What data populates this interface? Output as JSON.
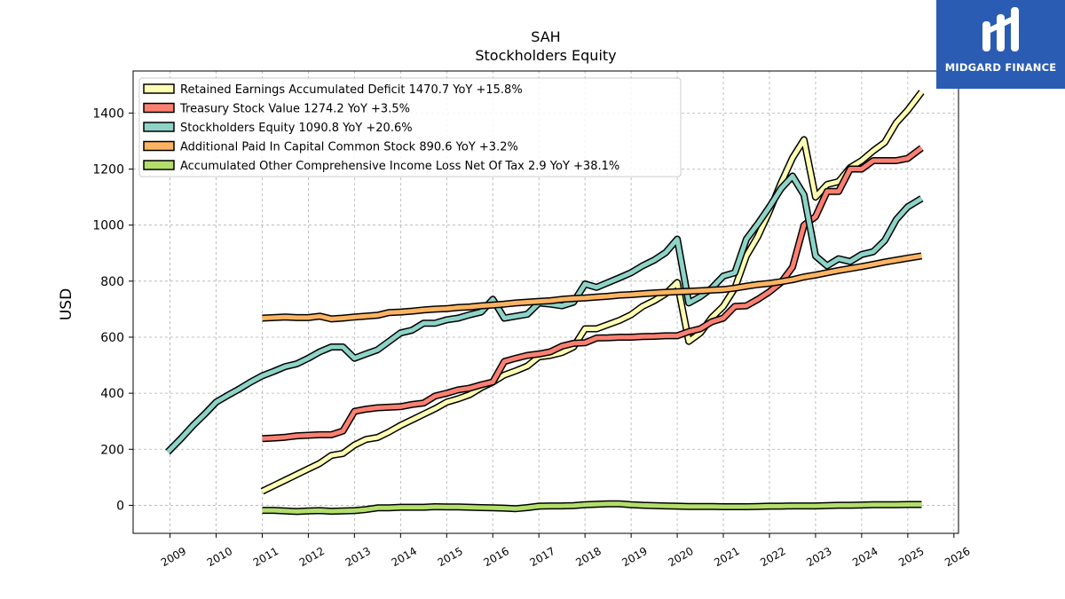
{
  "chart_data": {
    "type": "line",
    "title": "SAH",
    "subtitle": "Stockholders  Equity",
    "ylabel": "USD",
    "xlabel": "",
    "xlim": [
      2008.2,
      2026.1
    ],
    "ylim": [
      -100,
      1550
    ],
    "x_ticks": [
      2009,
      2010,
      2011,
      2012,
      2013,
      2014,
      2015,
      2016,
      2017,
      2018,
      2019,
      2020,
      2021,
      2022,
      2023,
      2024,
      2025,
      2026
    ],
    "y_ticks": [
      0,
      200,
      400,
      600,
      800,
      1000,
      1200,
      1400
    ],
    "grid": true,
    "legend_position": "top-left",
    "series": [
      {
        "name": "Retained Earnings Accumulated Deficit  1470.7 YoY +15.8%",
        "color": "#ffffb3",
        "points": [
          [
            2011.0,
            50
          ],
          [
            2011.25,
            70
          ],
          [
            2011.5,
            90
          ],
          [
            2011.75,
            110
          ],
          [
            2012.0,
            130
          ],
          [
            2012.25,
            150
          ],
          [
            2012.5,
            178
          ],
          [
            2012.75,
            185
          ],
          [
            2013.0,
            215
          ],
          [
            2013.25,
            235
          ],
          [
            2013.5,
            242
          ],
          [
            2013.75,
            262
          ],
          [
            2014.0,
            285
          ],
          [
            2014.25,
            305
          ],
          [
            2014.5,
            325
          ],
          [
            2014.75,
            345
          ],
          [
            2015.0,
            368
          ],
          [
            2015.25,
            380
          ],
          [
            2015.5,
            395
          ],
          [
            2015.75,
            420
          ],
          [
            2016.0,
            440
          ],
          [
            2016.25,
            465
          ],
          [
            2016.5,
            480
          ],
          [
            2016.75,
            497
          ],
          [
            2017.0,
            530
          ],
          [
            2017.25,
            535
          ],
          [
            2017.5,
            545
          ],
          [
            2017.75,
            565
          ],
          [
            2018.0,
            630
          ],
          [
            2018.25,
            630
          ],
          [
            2018.5,
            645
          ],
          [
            2018.75,
            660
          ],
          [
            2019.0,
            680
          ],
          [
            2019.25,
            710
          ],
          [
            2019.5,
            730
          ],
          [
            2019.75,
            755
          ],
          [
            2020.0,
            795
          ],
          [
            2020.25,
            585
          ],
          [
            2020.5,
            615
          ],
          [
            2020.75,
            670
          ],
          [
            2021.0,
            710
          ],
          [
            2021.25,
            775
          ],
          [
            2021.5,
            890
          ],
          [
            2021.75,
            960
          ],
          [
            2022.0,
            1050
          ],
          [
            2022.25,
            1150
          ],
          [
            2022.5,
            1240
          ],
          [
            2022.75,
            1305
          ],
          [
            2023.0,
            1100
          ],
          [
            2023.25,
            1145
          ],
          [
            2023.5,
            1155
          ],
          [
            2023.75,
            1205
          ],
          [
            2024.0,
            1230
          ],
          [
            2024.25,
            1265
          ],
          [
            2024.5,
            1295
          ],
          [
            2024.75,
            1365
          ],
          [
            2025.0,
            1410
          ],
          [
            2025.3,
            1475
          ]
        ]
      },
      {
        "name": "Treasury Stock Value  1274.2 YoY +3.5%",
        "color": "#fb8072",
        "points": [
          [
            2011.0,
            238
          ],
          [
            2011.25,
            240
          ],
          [
            2011.5,
            243
          ],
          [
            2011.75,
            248
          ],
          [
            2012.0,
            250
          ],
          [
            2012.25,
            252
          ],
          [
            2012.5,
            252
          ],
          [
            2012.75,
            265
          ],
          [
            2013.0,
            335
          ],
          [
            2013.25,
            343
          ],
          [
            2013.5,
            348
          ],
          [
            2013.75,
            350
          ],
          [
            2014.0,
            352
          ],
          [
            2014.25,
            360
          ],
          [
            2014.5,
            365
          ],
          [
            2014.75,
            390
          ],
          [
            2015.0,
            400
          ],
          [
            2015.25,
            412
          ],
          [
            2015.5,
            418
          ],
          [
            2015.75,
            430
          ],
          [
            2016.0,
            440
          ],
          [
            2016.25,
            513
          ],
          [
            2016.5,
            525
          ],
          [
            2016.75,
            535
          ],
          [
            2017.0,
            540
          ],
          [
            2017.25,
            548
          ],
          [
            2017.5,
            568
          ],
          [
            2017.75,
            578
          ],
          [
            2018.0,
            580
          ],
          [
            2018.25,
            597
          ],
          [
            2018.5,
            598
          ],
          [
            2018.75,
            600
          ],
          [
            2019.0,
            600
          ],
          [
            2019.25,
            602
          ],
          [
            2019.5,
            603
          ],
          [
            2019.75,
            605
          ],
          [
            2020.0,
            605
          ],
          [
            2020.25,
            620
          ],
          [
            2020.5,
            630
          ],
          [
            2020.75,
            655
          ],
          [
            2021.0,
            668
          ],
          [
            2021.25,
            710
          ],
          [
            2021.5,
            712
          ],
          [
            2021.75,
            735
          ],
          [
            2022.0,
            762
          ],
          [
            2022.25,
            795
          ],
          [
            2022.5,
            850
          ],
          [
            2022.75,
            1000
          ],
          [
            2023.0,
            1030
          ],
          [
            2023.25,
            1120
          ],
          [
            2023.5,
            1120
          ],
          [
            2023.75,
            1200
          ],
          [
            2024.0,
            1200
          ],
          [
            2024.25,
            1230
          ],
          [
            2024.5,
            1230
          ],
          [
            2024.75,
            1230
          ],
          [
            2025.0,
            1238
          ],
          [
            2025.3,
            1275
          ]
        ]
      },
      {
        "name": "Stockholders Equity  1090.8 YoY +20.6%",
        "color": "#8dd3c7",
        "points": [
          [
            2008.95,
            190
          ],
          [
            2009.25,
            240
          ],
          [
            2009.5,
            285
          ],
          [
            2009.75,
            325
          ],
          [
            2010.0,
            368
          ],
          [
            2010.25,
            392
          ],
          [
            2010.5,
            415
          ],
          [
            2010.75,
            440
          ],
          [
            2011.0,
            462
          ],
          [
            2011.25,
            478
          ],
          [
            2011.5,
            495
          ],
          [
            2011.75,
            505
          ],
          [
            2012.0,
            525
          ],
          [
            2012.25,
            548
          ],
          [
            2012.5,
            565
          ],
          [
            2012.75,
            565
          ],
          [
            2013.0,
            525
          ],
          [
            2013.25,
            540
          ],
          [
            2013.5,
            555
          ],
          [
            2013.75,
            585
          ],
          [
            2014.0,
            615
          ],
          [
            2014.25,
            625
          ],
          [
            2014.5,
            650
          ],
          [
            2014.75,
            650
          ],
          [
            2015.0,
            662
          ],
          [
            2015.25,
            668
          ],
          [
            2015.5,
            680
          ],
          [
            2015.75,
            690
          ],
          [
            2016.0,
            735
          ],
          [
            2016.25,
            668
          ],
          [
            2016.5,
            675
          ],
          [
            2016.75,
            682
          ],
          [
            2017.0,
            722
          ],
          [
            2017.25,
            718
          ],
          [
            2017.5,
            712
          ],
          [
            2017.75,
            725
          ],
          [
            2018.0,
            790
          ],
          [
            2018.25,
            778
          ],
          [
            2018.5,
            795
          ],
          [
            2018.75,
            812
          ],
          [
            2019.0,
            830
          ],
          [
            2019.25,
            855
          ],
          [
            2019.5,
            875
          ],
          [
            2019.75,
            902
          ],
          [
            2020.0,
            950
          ],
          [
            2020.25,
            722
          ],
          [
            2020.5,
            745
          ],
          [
            2020.75,
            775
          ],
          [
            2021.0,
            818
          ],
          [
            2021.25,
            830
          ],
          [
            2021.5,
            950
          ],
          [
            2021.75,
            1005
          ],
          [
            2022.0,
            1065
          ],
          [
            2022.25,
            1130
          ],
          [
            2022.5,
            1175
          ],
          [
            2022.75,
            1108
          ],
          [
            2023.0,
            890
          ],
          [
            2023.25,
            855
          ],
          [
            2023.5,
            880
          ],
          [
            2023.75,
            870
          ],
          [
            2024.0,
            895
          ],
          [
            2024.25,
            905
          ],
          [
            2024.5,
            945
          ],
          [
            2024.75,
            1020
          ],
          [
            2025.0,
            1065
          ],
          [
            2025.3,
            1095
          ]
        ]
      },
      {
        "name": "Additional Paid In Capital Common Stock  890.6 YoY +3.2%",
        "color": "#fdb462",
        "points": [
          [
            2011.0,
            668
          ],
          [
            2011.25,
            670
          ],
          [
            2011.5,
            672
          ],
          [
            2011.75,
            670
          ],
          [
            2012.0,
            670
          ],
          [
            2012.25,
            675
          ],
          [
            2012.5,
            665
          ],
          [
            2012.75,
            668
          ],
          [
            2013.0,
            672
          ],
          [
            2013.25,
            675
          ],
          [
            2013.5,
            678
          ],
          [
            2013.75,
            688
          ],
          [
            2014.0,
            690
          ],
          [
            2014.25,
            693
          ],
          [
            2014.5,
            697
          ],
          [
            2014.75,
            700
          ],
          [
            2015.0,
            702
          ],
          [
            2015.25,
            706
          ],
          [
            2015.5,
            708
          ],
          [
            2015.75,
            712
          ],
          [
            2016.0,
            715
          ],
          [
            2016.25,
            718
          ],
          [
            2016.5,
            722
          ],
          [
            2016.75,
            725
          ],
          [
            2017.0,
            728
          ],
          [
            2017.25,
            730
          ],
          [
            2017.5,
            735
          ],
          [
            2017.75,
            738
          ],
          [
            2018.0,
            740
          ],
          [
            2018.25,
            743
          ],
          [
            2018.5,
            746
          ],
          [
            2018.75,
            750
          ],
          [
            2019.0,
            752
          ],
          [
            2019.25,
            755
          ],
          [
            2019.5,
            758
          ],
          [
            2019.75,
            760
          ],
          [
            2020.0,
            762
          ],
          [
            2020.25,
            764
          ],
          [
            2020.5,
            766
          ],
          [
            2020.75,
            768
          ],
          [
            2021.0,
            770
          ],
          [
            2021.25,
            775
          ],
          [
            2021.5,
            782
          ],
          [
            2021.75,
            788
          ],
          [
            2022.0,
            792
          ],
          [
            2022.25,
            798
          ],
          [
            2022.5,
            805
          ],
          [
            2022.75,
            815
          ],
          [
            2023.0,
            822
          ],
          [
            2023.25,
            830
          ],
          [
            2023.5,
            838
          ],
          [
            2023.75,
            845
          ],
          [
            2024.0,
            852
          ],
          [
            2024.25,
            860
          ],
          [
            2024.5,
            868
          ],
          [
            2024.75,
            875
          ],
          [
            2025.0,
            882
          ],
          [
            2025.3,
            890
          ]
        ]
      },
      {
        "name": "Accumulated Other Comprehensive Income Loss Net Of Tax  2.9 YoY +38.1%",
        "color": "#b3de69",
        "points": [
          [
            2011.0,
            -18
          ],
          [
            2011.25,
            -18
          ],
          [
            2011.5,
            -20
          ],
          [
            2011.75,
            -22
          ],
          [
            2012.0,
            -20
          ],
          [
            2012.25,
            -19
          ],
          [
            2012.5,
            -21
          ],
          [
            2012.75,
            -20
          ],
          [
            2013.0,
            -19
          ],
          [
            2013.25,
            -15
          ],
          [
            2013.5,
            -9
          ],
          [
            2013.75,
            -9
          ],
          [
            2014.0,
            -7
          ],
          [
            2014.25,
            -7
          ],
          [
            2014.5,
            -7
          ],
          [
            2014.75,
            -5
          ],
          [
            2015.0,
            -6
          ],
          [
            2015.25,
            -6
          ],
          [
            2015.5,
            -7
          ],
          [
            2015.75,
            -8
          ],
          [
            2016.0,
            -9
          ],
          [
            2016.25,
            -10
          ],
          [
            2016.5,
            -12
          ],
          [
            2016.75,
            -8
          ],
          [
            2017.0,
            -3
          ],
          [
            2017.25,
            -2
          ],
          [
            2017.5,
            -2
          ],
          [
            2017.75,
            -1
          ],
          [
            2018.0,
            2
          ],
          [
            2018.25,
            4
          ],
          [
            2018.5,
            5
          ],
          [
            2018.75,
            5
          ],
          [
            2019.0,
            2
          ],
          [
            2019.25,
            0
          ],
          [
            2019.5,
            -1
          ],
          [
            2019.75,
            -2
          ],
          [
            2020.0,
            -3
          ],
          [
            2020.25,
            -4
          ],
          [
            2020.5,
            -4
          ],
          [
            2020.75,
            -4
          ],
          [
            2021.0,
            -5
          ],
          [
            2021.25,
            -5
          ],
          [
            2021.5,
            -5
          ],
          [
            2021.75,
            -4
          ],
          [
            2022.0,
            -3
          ],
          [
            2022.25,
            -3
          ],
          [
            2022.5,
            -2
          ],
          [
            2022.75,
            -2
          ],
          [
            2023.0,
            -2
          ],
          [
            2023.25,
            -1
          ],
          [
            2023.5,
            0
          ],
          [
            2023.75,
            0
          ],
          [
            2024.0,
            1
          ],
          [
            2024.25,
            2
          ],
          [
            2024.5,
            2
          ],
          [
            2024.75,
            2
          ],
          [
            2025.0,
            3
          ],
          [
            2025.3,
            3
          ]
        ]
      }
    ]
  },
  "logo": {
    "text": "MIDGARD FINANCE",
    "icon": "midgard-m-logo-icon",
    "background": "#2a5cb3"
  }
}
